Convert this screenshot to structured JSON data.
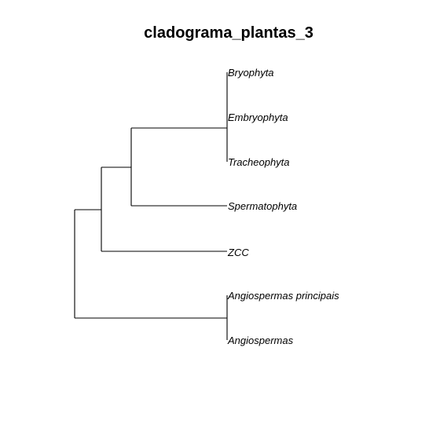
{
  "title": "cladograma_plantas_3",
  "tree": {
    "tips": [
      "Bryophyta",
      "Embryophyta",
      "Tracheophyta",
      "Spermatophyta",
      "ZCC",
      "Angiospermas principais",
      "Angiospermas"
    ],
    "topology": "((((Bryophyta,Embryophyta,Tracheophyta),Spermatophyta),ZCC),(Angiospermas principais,Angiospermas))"
  }
}
